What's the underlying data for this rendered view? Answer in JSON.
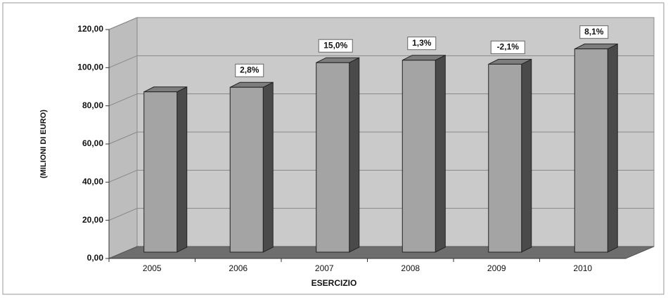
{
  "chart_data": {
    "type": "bar3d",
    "categories": [
      "2005",
      "2006",
      "2007",
      "2008",
      "2009",
      "2010"
    ],
    "values": [
      84,
      86.4,
      99.3,
      100.6,
      98.5,
      106.5
    ],
    "growth_labels": [
      null,
      "2,8%",
      "15,0%",
      "1,3%",
      "-2,1%",
      "8,1%"
    ],
    "color": "#a4a4a4",
    "xlabel": "ESERCIZIO",
    "ylabel": "(MILIONI DI EURO)",
    "ylim": [
      0,
      120
    ],
    "yticks": [
      {
        "value": 0,
        "label": "0,00"
      },
      {
        "value": 20,
        "label": "20,00"
      },
      {
        "value": 40,
        "label": "40,00"
      },
      {
        "value": 60,
        "label": "60,00"
      },
      {
        "value": 80,
        "label": "80,00"
      },
      {
        "value": 100,
        "label": "100,00"
      },
      {
        "value": 120,
        "label": "120,00"
      }
    ],
    "grid": true
  }
}
